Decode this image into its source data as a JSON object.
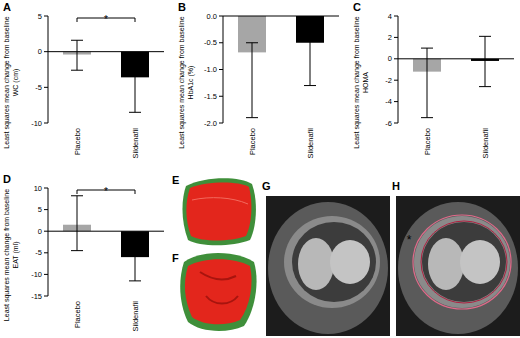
{
  "chart_data": [
    {
      "type": "bar",
      "panel": "A",
      "ylabel": [
        "Least squares mean change from baseline",
        "WC (cm)"
      ],
      "categories": [
        "Placebo",
        "Sildenafil"
      ],
      "values": [
        -0.4,
        -3.6
      ],
      "ci_low": [
        -2.6,
        -8.5
      ],
      "ci_high": [
        1.6,
        -1.4
      ],
      "colors": [
        "#a6a6a6",
        "#000000"
      ],
      "ylim": [
        -10,
        5
      ],
      "yticks": [
        -10,
        -5,
        0,
        5
      ],
      "significance": "*"
    },
    {
      "type": "bar",
      "panel": "B",
      "ylabel": [
        "Least squares mean change from baseline",
        "HbA1c (%)"
      ],
      "categories": [
        "Placebo",
        "Sildenafil"
      ],
      "values": [
        -0.68,
        -0.5
      ],
      "ci_low": [
        -1.9,
        -1.3
      ],
      "ci_high": [
        -0.5,
        -0.36
      ],
      "colors": [
        "#a6a6a6",
        "#000000"
      ],
      "ylim": [
        -2,
        0
      ],
      "yticks": [
        {
          "value": -2,
          "label": "-2.0"
        },
        -1.5,
        {
          "value": -1,
          "label": "-1.0"
        },
        -0.5,
        {
          "value": 0,
          "label": "0.0"
        }
      ]
    },
    {
      "type": "bar",
      "panel": "C",
      "ylabel": [
        "Least squares mean change from baseline",
        "HOMA"
      ],
      "categories": [
        "Placebo",
        "Sildenafil"
      ],
      "values": [
        -1.2,
        -0.2
      ],
      "ci_low": [
        -5.5,
        -2.6
      ],
      "ci_high": [
        1.0,
        2.1
      ],
      "colors": [
        "#a6a6a6",
        "#000000"
      ],
      "ylim": [
        -6,
        4
      ],
      "yticks": [
        -6,
        -4,
        -2,
        0,
        2,
        4
      ]
    },
    {
      "type": "bar",
      "panel": "D",
      "ylabel": [
        "Least squares mean change from baseline",
        "EAT (ml)"
      ],
      "categories": [
        "Placebo",
        "Sildenafil"
      ],
      "values": [
        1.5,
        -6.0
      ],
      "ci_low": [
        -4.5,
        -11.5
      ],
      "ci_high": [
        8.2,
        -1.8
      ],
      "colors": [
        "#a6a6a6",
        "#000000"
      ],
      "ylim": [
        -15,
        10
      ],
      "yticks": [
        -15,
        -10,
        -5,
        0,
        5,
        10
      ],
      "significance": "*"
    }
  ],
  "images": [
    {
      "panel": "E"
    },
    {
      "panel": "F"
    },
    {
      "panel": "G"
    },
    {
      "panel": "H",
      "annotation": "*"
    }
  ]
}
